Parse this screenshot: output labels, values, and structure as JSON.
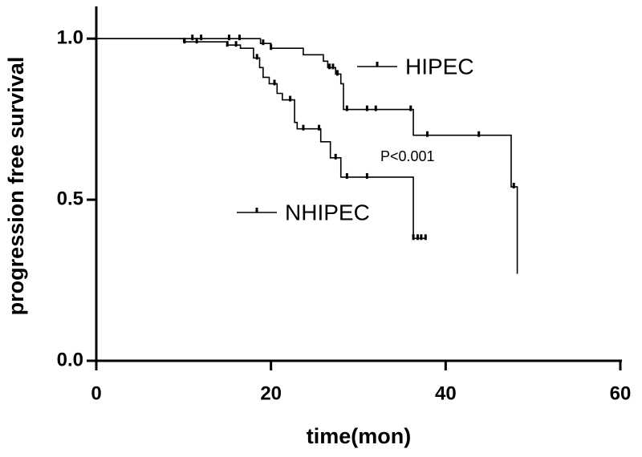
{
  "chart_data": {
    "type": "line",
    "step": true,
    "xlabel": "time(mon)",
    "ylabel": "progression free survival",
    "xlim": [
      0,
      60
    ],
    "ylim": [
      0,
      1.1
    ],
    "xticks": [
      0,
      20,
      40,
      60
    ],
    "yticks": [
      {
        "value": 0,
        "label": "0.0"
      },
      {
        "value": 0.5,
        "label": "0.5"
      },
      {
        "value": 1,
        "label": "1.0"
      }
    ],
    "annotation": "P<0.001",
    "series": [
      {
        "name": "HIPEC",
        "color": "#000000",
        "x": [
          0,
          18.8,
          20,
          23.7,
          26,
          26.5,
          27.4,
          28,
          28.3,
          36.3,
          47.5,
          48.2
        ],
        "values": [
          1.0,
          0.985,
          0.97,
          0.95,
          0.93,
          0.91,
          0.89,
          0.86,
          0.78,
          0.7,
          0.54,
          0.27
        ],
        "censored": [
          11,
          12,
          15.2,
          16.4,
          19.1,
          20,
          26.7,
          27.1,
          27.6,
          28.7,
          31,
          32,
          36,
          37.9,
          43.8,
          47.8
        ]
      },
      {
        "name": "NHIPEC",
        "color": "#000000",
        "x": [
          0,
          10,
          15,
          16.5,
          18,
          18.7,
          19.1,
          19.8,
          20.7,
          21.3,
          22.7,
          23,
          25.7,
          26.8,
          28,
          36.3,
          37.7
        ],
        "values": [
          1.0,
          0.99,
          0.98,
          0.97,
          0.94,
          0.91,
          0.88,
          0.86,
          0.83,
          0.81,
          0.74,
          0.72,
          0.68,
          0.63,
          0.57,
          0.38,
          0.38
        ],
        "censored": [
          10.1,
          11.5,
          15,
          16,
          18.4,
          20.4,
          22.2,
          23.7,
          25.5,
          27.4,
          28.7,
          31,
          36.3,
          36.8,
          37.2,
          37.7
        ]
      }
    ]
  }
}
